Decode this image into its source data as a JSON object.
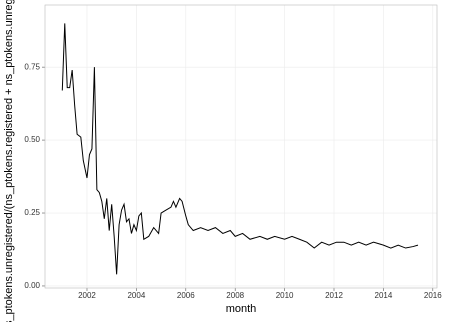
{
  "chart_data": {
    "type": "line",
    "xlabel": "month",
    "ylabel": "s_ptokens.unregistered/(ns_ptokens.registered + ns_ptokens.unregi",
    "x": [
      2001.0,
      2001.1,
      2001.2,
      2001.3,
      2001.4,
      2001.5,
      2001.6,
      2001.75,
      2001.85,
      2002.0,
      2002.1,
      2002.2,
      2002.3,
      2002.4,
      2002.5,
      2002.6,
      2002.7,
      2002.8,
      2002.9,
      2003.0,
      2003.1,
      2003.2,
      2003.3,
      2003.4,
      2003.5,
      2003.6,
      2003.7,
      2003.8,
      2003.9,
      2004.0,
      2004.1,
      2004.2,
      2004.3,
      2004.5,
      2004.7,
      2004.9,
      2005.0,
      2005.2,
      2005.4,
      2005.5,
      2005.6,
      2005.75,
      2005.85,
      2006.0,
      2006.1,
      2006.3,
      2006.6,
      2006.9,
      2007.2,
      2007.5,
      2007.8,
      2008.0,
      2008.3,
      2008.6,
      2009.0,
      2009.3,
      2009.6,
      2010.0,
      2010.3,
      2010.6,
      2010.9,
      2011.2,
      2011.5,
      2011.8,
      2012.1,
      2012.4,
      2012.7,
      2013.0,
      2013.3,
      2013.6,
      2014.0,
      2014.3,
      2014.6,
      2014.9,
      2015.2,
      2015.4
    ],
    "series": [
      {
        "color": "#000000",
        "values": [
          0.67,
          0.9,
          0.68,
          0.68,
          0.74,
          0.62,
          0.52,
          0.51,
          0.43,
          0.37,
          0.45,
          0.47,
          0.75,
          0.33,
          0.32,
          0.29,
          0.23,
          0.3,
          0.19,
          0.28,
          0.17,
          0.04,
          0.21,
          0.26,
          0.28,
          0.22,
          0.23,
          0.18,
          0.21,
          0.19,
          0.24,
          0.25,
          0.16,
          0.17,
          0.2,
          0.18,
          0.25,
          0.26,
          0.27,
          0.29,
          0.27,
          0.3,
          0.29,
          0.24,
          0.21,
          0.19,
          0.2,
          0.19,
          0.2,
          0.18,
          0.19,
          0.17,
          0.18,
          0.16,
          0.17,
          0.16,
          0.17,
          0.16,
          0.17,
          0.16,
          0.15,
          0.13,
          0.15,
          0.14,
          0.15,
          0.15,
          0.14,
          0.15,
          0.14,
          0.15,
          0.14,
          0.13,
          0.14,
          0.13,
          0.135,
          0.14
        ]
      }
    ],
    "xlim": [
      2000.3,
      2016.17
    ],
    "xticks": [
      2002,
      2004,
      2006,
      2008,
      2010,
      2012,
      2014,
      2016
    ],
    "ylim": [
      -0.007,
      0.963
    ],
    "yticks": [
      {
        "value": 0,
        "label": "0.00"
      },
      0.25,
      {
        "value": 0.5,
        "label": "0.50"
      },
      0.75
    ],
    "grid": true
  }
}
